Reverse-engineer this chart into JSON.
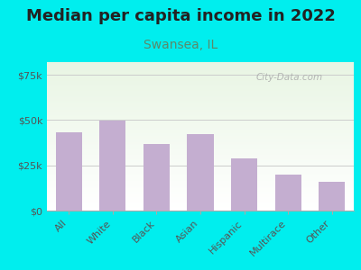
{
  "title": "Median per capita income in 2022",
  "subtitle": "Swansea, IL",
  "categories": [
    "All",
    "White",
    "Black",
    "Asian",
    "Hispanic",
    "Multirace",
    "Other"
  ],
  "values": [
    43000,
    49500,
    37000,
    42000,
    29000,
    20000,
    16000
  ],
  "bar_color": "#c4aed0",
  "title_fontsize": 13,
  "subtitle_fontsize": 10,
  "subtitle_color": "#5a8a6a",
  "background_outer": "#00eeee",
  "ylabel_ticks": [
    "$0",
    "$25k",
    "$50k",
    "$75k"
  ],
  "ytick_vals": [
    0,
    25000,
    50000,
    75000
  ],
  "ylim": [
    0,
    82000
  ],
  "watermark": "City-Data.com",
  "bar_width": 0.6,
  "tick_label_color": "#555555",
  "grid_color": "#cccccc"
}
